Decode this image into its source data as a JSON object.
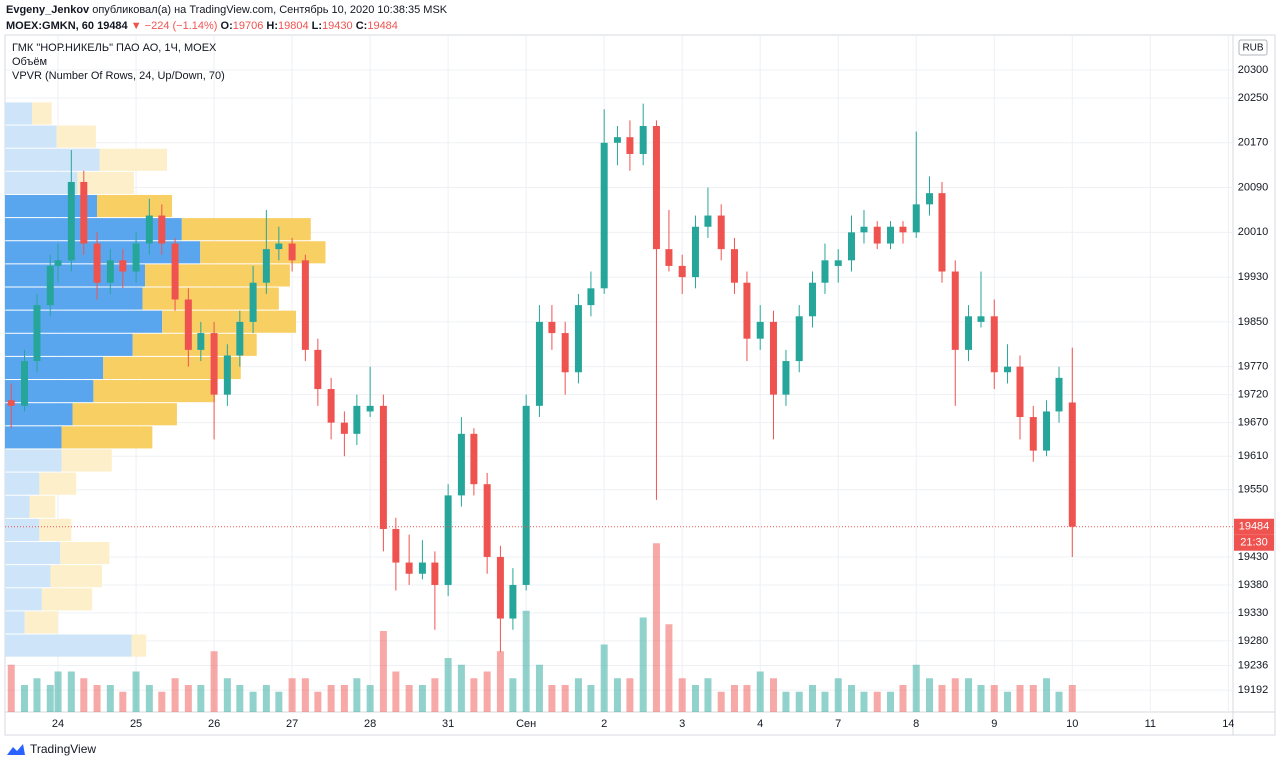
{
  "header": {
    "author": "Evgeny_Jenkov",
    "published": "опубликовал(а) на TradingView.com, Сентябрь 10, 2020 10:38:35 MSK",
    "symbol": "MOEX:GMKN, 60",
    "change": "▼ −224 (−1.14%)",
    "o_label": "O:",
    "h_label": "H:",
    "l_label": "L:",
    "c_label": "C:"
  },
  "brand": "TradingView",
  "chart_data": {
    "type": "candlestick",
    "legend": {
      "main": "ГМК \"НОР.НИКЕЛЬ\" ПАО АО, 1Ч, MOEX",
      "volume": "Объём",
      "vpvr": "VPVR (Number Of Rows, 24, Up/Down, 70)"
    },
    "currency": "RUB",
    "countdown": "21:30",
    "up_color": "#26a69a",
    "down_color": "#ef5350",
    "xlim": [
      -0.68,
      15.06
    ],
    "xticks": [
      {
        "value": 0,
        "label": "24"
      },
      {
        "value": 1,
        "label": "25"
      },
      {
        "value": 2,
        "label": "26"
      },
      {
        "value": 3,
        "label": "27"
      },
      {
        "value": 4,
        "label": "28"
      },
      {
        "value": 5,
        "label": "31"
      },
      {
        "value": 6,
        "label": "Сен"
      },
      {
        "value": 7,
        "label": "2"
      },
      {
        "value": 8,
        "label": "3"
      },
      {
        "value": 9,
        "label": "4"
      },
      {
        "value": 10,
        "label": "7"
      },
      {
        "value": 11,
        "label": "8"
      },
      {
        "value": 12,
        "label": "9"
      },
      {
        "value": 13,
        "label": "10"
      },
      {
        "value": 14,
        "label": "11"
      },
      {
        "value": 15,
        "label": "14"
      }
    ],
    "ylim": [
      19153,
      20359
    ],
    "yticks": [
      19192,
      19236,
      19280,
      19330,
      19380,
      19430,
      19550,
      19610,
      19670,
      19720,
      19770,
      19850,
      19930,
      20010,
      20090,
      20170,
      20250,
      20300
    ],
    "grid": true,
    "candles": {
      "x": [
        -0.6,
        -0.43,
        -0.27,
        -0.1,
        0,
        0.17,
        0.33,
        0.5,
        0.67,
        0.83,
        1,
        1.17,
        1.33,
        1.5,
        1.67,
        1.83,
        2,
        2.17,
        2.33,
        2.5,
        2.67,
        2.83,
        3,
        3.17,
        3.33,
        3.5,
        3.67,
        3.83,
        4,
        4.17,
        4.33,
        4.5,
        4.67,
        4.83,
        5,
        5.17,
        5.33,
        5.5,
        5.67,
        5.83,
        6,
        6.17,
        6.33,
        6.5,
        6.67,
        6.83,
        7,
        7.17,
        7.33,
        7.5,
        7.67,
        7.83,
        8,
        8.17,
        8.33,
        8.5,
        8.67,
        8.83,
        9,
        9.17,
        9.33,
        9.5,
        9.67,
        9.83,
        10,
        10.17,
        10.33,
        10.5,
        10.67,
        10.83,
        11,
        11.17,
        11.33,
        11.5,
        11.67,
        11.83,
        12,
        12.17,
        12.33,
        12.5,
        12.67,
        12.83,
        13
      ],
      "open": [
        19710,
        19700,
        19780,
        19880,
        19950,
        19960,
        20100,
        19990,
        19920,
        19960,
        19940,
        19990,
        20040,
        19990,
        19890,
        19800,
        19830,
        19720,
        19790,
        19850,
        19920,
        19980,
        19990,
        19960,
        19800,
        19730,
        19670,
        19650,
        19690,
        19700,
        19480,
        19420,
        19400,
        19420,
        19380,
        19540,
        19650,
        19560,
        19430,
        19320,
        19380,
        19700,
        19850,
        19830,
        19760,
        19880,
        19910,
        20170,
        20180,
        20150,
        20200,
        19980,
        19950,
        19930,
        20020,
        20040,
        19980,
        19920,
        19820,
        19850,
        19720,
        19780,
        19860,
        19920,
        19950,
        19960,
        20010,
        20020,
        19990,
        20020,
        20010,
        20060,
        20080,
        19940,
        19800,
        19850,
        19860,
        19760,
        19770,
        19680,
        19620,
        19690,
        19706
      ],
      "high": [
        19740,
        19800,
        19900,
        19970,
        19990,
        20157,
        20120,
        20010,
        19980,
        19980,
        20010,
        20070,
        20060,
        20000,
        19910,
        19850,
        19850,
        19810,
        19870,
        19950,
        20050,
        20020,
        20000,
        19970,
        19820,
        19750,
        19690,
        19720,
        19770,
        19720,
        19500,
        19470,
        19460,
        19440,
        19560,
        19680,
        19660,
        19580,
        19450,
        19410,
        19720,
        19880,
        19880,
        19850,
        19900,
        19940,
        20230,
        20200,
        20210,
        20240,
        20210,
        20050,
        19970,
        20040,
        20090,
        20060,
        20000,
        19940,
        19880,
        19870,
        19800,
        19880,
        19940,
        19990,
        19980,
        20040,
        20050,
        20030,
        20030,
        20030,
        20190,
        20110,
        20100,
        19960,
        19880,
        19940,
        19890,
        19810,
        19790,
        19700,
        19710,
        19770,
        19804
      ],
      "low": [
        19660,
        19690,
        19760,
        19860,
        19920,
        19940,
        19970,
        19890,
        19900,
        19910,
        19920,
        19970,
        19970,
        19870,
        19770,
        19780,
        19640,
        19700,
        19770,
        19830,
        19900,
        19960,
        19940,
        19780,
        19700,
        19640,
        19610,
        19630,
        19680,
        19440,
        19370,
        19380,
        19390,
        19300,
        19360,
        19520,
        19540,
        19400,
        19260,
        19300,
        19370,
        19680,
        19800,
        19720,
        19740,
        19860,
        19900,
        20130,
        20120,
        20130,
        19532,
        19940,
        19900,
        19910,
        20000,
        19960,
        19900,
        19780,
        19800,
        19640,
        19700,
        19760,
        19840,
        19900,
        19920,
        19940,
        19990,
        19980,
        19980,
        19990,
        20000,
        20040,
        19920,
        19700,
        19780,
        19840,
        19730,
        19740,
        19640,
        19600,
        19610,
        19670,
        19430
      ],
      "close": [
        19700,
        19780,
        19880,
        19950,
        19960,
        20100,
        19990,
        19920,
        19960,
        19940,
        19990,
        20040,
        19990,
        19890,
        19800,
        19830,
        19720,
        19790,
        19850,
        19920,
        19980,
        19990,
        19960,
        19800,
        19730,
        19670,
        19650,
        19700,
        19700,
        19480,
        19420,
        19400,
        19420,
        19380,
        19540,
        19650,
        19560,
        19430,
        19320,
        19380,
        19700,
        19850,
        19830,
        19760,
        19880,
        19910,
        20170,
        20180,
        20150,
        20200,
        19980,
        19950,
        19930,
        20020,
        20040,
        19980,
        19920,
        19820,
        19850,
        19720,
        19780,
        19860,
        19920,
        19960,
        19960,
        20010,
        20020,
        19990,
        20020,
        20010,
        20060,
        20080,
        19940,
        19800,
        19860,
        19860,
        19760,
        19770,
        19680,
        19620,
        19690,
        19750,
        19484
      ]
    },
    "volume": {
      "axis": "y2",
      "values": [
        7,
        4,
        5,
        4,
        6,
        6,
        5,
        4,
        4,
        3,
        6,
        4,
        3,
        5,
        4,
        4,
        9,
        5,
        4,
        3,
        4,
        3,
        5,
        5,
        3,
        4,
        4,
        5,
        4,
        12,
        6,
        4,
        4,
        5,
        8,
        7,
        5,
        6,
        9,
        5,
        15,
        7,
        4,
        4,
        5,
        4,
        10,
        5,
        5,
        14,
        25,
        13,
        5,
        4,
        5,
        3,
        4,
        4,
        6,
        5,
        3,
        3,
        4,
        3,
        5,
        4,
        3,
        3,
        3,
        4,
        7,
        5,
        4,
        5,
        5,
        4,
        4,
        3,
        4,
        4,
        5,
        3,
        4
      ]
    },
    "y2lim": [
      0,
      100
    ],
    "volume_profile": {
      "ylim": [
        19251,
        20243
      ],
      "xlim": [
        0,
        100
      ],
      "up_color": "#5aa6ee",
      "down_color": "#f8cf63",
      "up_color_outside": "#cde4f9",
      "down_color_outside": "#fdefc9",
      "up": [
        2.2,
        4.2,
        7.7,
        5.9,
        7.5,
        14.4,
        15.9,
        11.4,
        11.2,
        12.8,
        10.4,
        8.0,
        7.2,
        5.5,
        4.6,
        4.6,
        2.8,
        2.0,
        2.8,
        4.5,
        3.7,
        3.0,
        1.6,
        10.3
      ],
      "down": [
        1.6,
        3.2,
        5.5,
        4.6,
        6.1,
        10.5,
        10.2,
        11.8,
        11.1,
        10.9,
        10.1,
        11.2,
        9.9,
        8.5,
        7.4,
        4.1,
        3.0,
        2.1,
        2.6,
        4.0,
        4.2,
        4.1,
        2.7,
        1.2
      ],
      "value_area": [
        false,
        false,
        false,
        false,
        true,
        true,
        true,
        true,
        true,
        true,
        true,
        true,
        true,
        true,
        true,
        false,
        false,
        false,
        false,
        false,
        false,
        false,
        false,
        false
      ]
    }
  }
}
